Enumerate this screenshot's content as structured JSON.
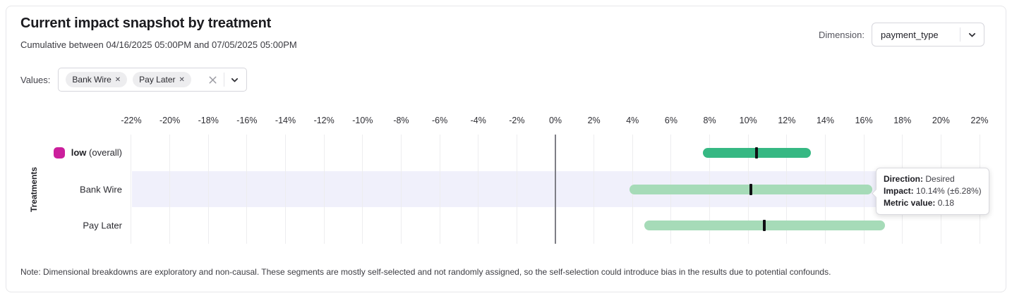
{
  "header": {
    "title": "Current impact snapshot by treatment",
    "subtitle": "Cumulative between 04/16/2025 05:00PM and 07/05/2025 05:00PM",
    "dimension": {
      "label": "Dimension:",
      "value": "payment_type"
    }
  },
  "filters": {
    "label": "Values:",
    "selected": [
      "Bank Wire",
      "Pay Later"
    ]
  },
  "chart_data": {
    "type": "bar",
    "subtype": "horizontal_confidence_interval",
    "title": "Current impact snapshot by treatment",
    "ylabel": "Treatments",
    "axis": {
      "unit": "%",
      "min": -22,
      "max": 22,
      "step": 2,
      "position": "top",
      "ticks": [
        -22,
        -20,
        -18,
        -16,
        -14,
        -12,
        -10,
        -8,
        -6,
        -4,
        -2,
        0,
        2,
        4,
        6,
        8,
        10,
        12,
        14,
        16,
        18,
        20,
        22
      ]
    },
    "zero_line": 0,
    "grid": true,
    "rows": [
      {
        "label": "low",
        "suffix": "(overall)",
        "label_bold": true,
        "legend_color": "#cb1f9c",
        "bar_color": "#36b883",
        "impact_pct": 10.45,
        "margin_pct": 2.8,
        "highlighted": false
      },
      {
        "label": "Bank Wire",
        "suffix": "",
        "label_bold": false,
        "bar_color": "#a6dbb8",
        "impact_pct": 10.14,
        "margin_pct": 6.28,
        "highlighted": true
      },
      {
        "label": "Pay Later",
        "suffix": "",
        "label_bold": false,
        "bar_color": "#a6dbb8",
        "impact_pct": 10.85,
        "margin_pct": 6.25,
        "highlighted": false
      }
    ]
  },
  "tooltip": {
    "target_row": "Bank Wire",
    "lines": [
      {
        "label": "Direction:",
        "value": "Desired"
      },
      {
        "label": "Impact:",
        "value": "10.14% (±6.28%)"
      },
      {
        "label": "Metric value:",
        "value": "0.18"
      }
    ]
  },
  "note": "Note: Dimensional breakdowns are exploratory and non-causal. These segments are mostly self-selected and not randomly assigned, so the self-selection could introduce bias in the results due to potential confounds."
}
